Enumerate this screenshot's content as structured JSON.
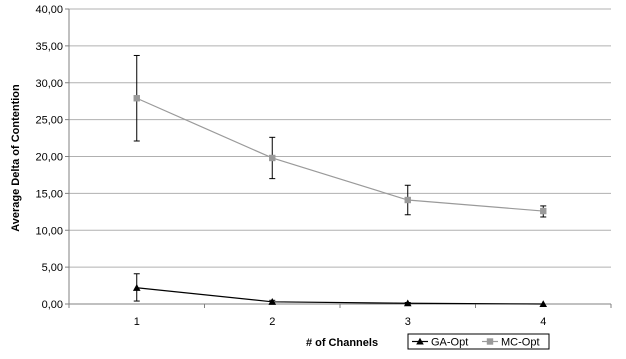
{
  "colors": {
    "ga_opt": "#000000",
    "mc_opt": "#9a9a9a",
    "grid": "#b0b0b0",
    "axis": "#808080"
  },
  "chart_data": {
    "type": "line",
    "xlabel": "# of Channels",
    "ylabel": "Average Delta of Contention",
    "categories": [
      "1",
      "2",
      "3",
      "4"
    ],
    "ylim": [
      0,
      40
    ],
    "yticks": [
      0,
      5,
      10,
      15,
      20,
      25,
      30,
      35,
      40
    ],
    "ytick_labels": [
      "0,00",
      "5,00",
      "10,00",
      "15,00",
      "20,00",
      "25,00",
      "30,00",
      "35,00",
      "40,00"
    ],
    "grid": true,
    "legend_position": "bottom-right",
    "series": [
      {
        "name": "GA-Opt",
        "marker": "triangle",
        "values": [
          2.2,
          0.3,
          0.1,
          0.0
        ],
        "err_low": [
          0.4,
          0.1,
          0.0,
          0.0
        ],
        "err_high": [
          4.1,
          0.5,
          0.2,
          0.0
        ]
      },
      {
        "name": "MC-Opt",
        "marker": "square",
        "values": [
          27.9,
          19.8,
          14.1,
          12.6
        ],
        "err_low": [
          22.1,
          17.0,
          12.1,
          11.8
        ],
        "err_high": [
          33.7,
          22.6,
          16.1,
          13.3
        ]
      }
    ]
  }
}
